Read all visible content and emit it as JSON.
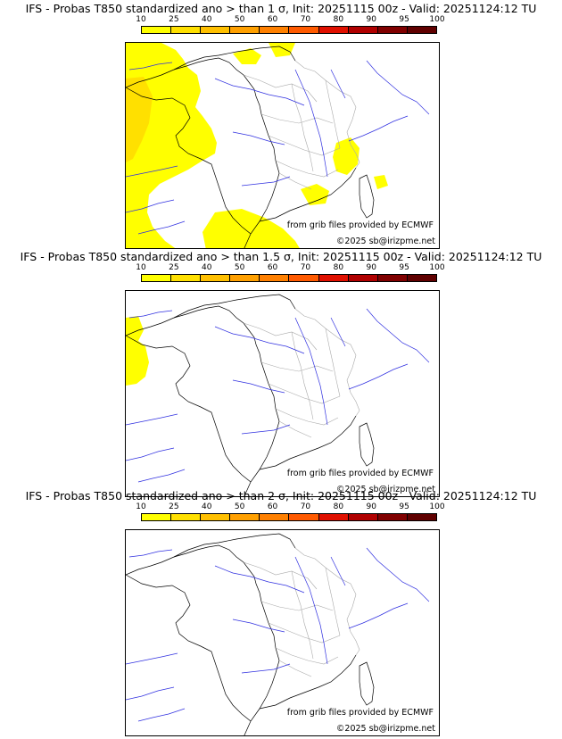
{
  "colorbar": {
    "ticks": [
      "10",
      "25",
      "40",
      "50",
      "60",
      "70",
      "80",
      "90",
      "95",
      "100"
    ],
    "colors": [
      "#ffff00",
      "#ffe000",
      "#ffc000",
      "#ffa000",
      "#ff8000",
      "#ff5a00",
      "#e01000",
      "#b00000",
      "#800000",
      "#600000"
    ]
  },
  "panels": [
    {
      "title": "IFS - Probas T850  standardized ano > than 1 σ, Init: 20251115 00z - Valid: 20251124:12 TU",
      "source_text": "from grib files provided by ECMWF",
      "credit_text": "©2025 sb@irizpme.net",
      "shade_level": "high"
    },
    {
      "title": "IFS - Probas T850  standardized ano > than 1.5 σ, Init: 20251115 00z - Valid: 20251124:12 TU",
      "source_text": "from grib files provided by ECMWF",
      "credit_text": "©2025 sb@irizpme.net",
      "shade_level": "low"
    },
    {
      "title": "IFS - Probas T850  standardized ano > than 2 σ, Init: 20251115 00z - Valid: 20251124:12 TU",
      "source_text": "from grib files provided by ECMWF",
      "credit_text": "©2025 sb@irizpme.net",
      "shade_level": "none"
    }
  ]
}
